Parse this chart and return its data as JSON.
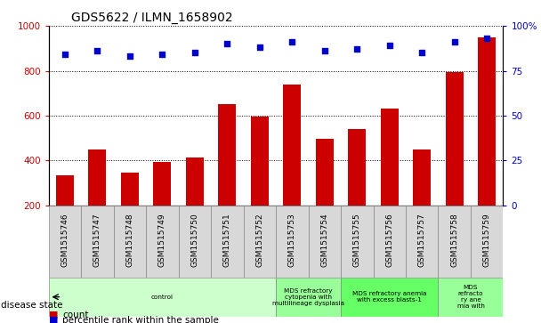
{
  "title": "GDS5622 / ILMN_1658902",
  "samples": [
    "GSM1515746",
    "GSM1515747",
    "GSM1515748",
    "GSM1515749",
    "GSM1515750",
    "GSM1515751",
    "GSM1515752",
    "GSM1515753",
    "GSM1515754",
    "GSM1515755",
    "GSM1515756",
    "GSM1515757",
    "GSM1515758",
    "GSM1515759"
  ],
  "counts": [
    335,
    450,
    347,
    395,
    415,
    650,
    595,
    737,
    498,
    540,
    630,
    448,
    795,
    950
  ],
  "percentiles": [
    84,
    86,
    83,
    84,
    85,
    90,
    88,
    91,
    86,
    87,
    89,
    85,
    91,
    93
  ],
  "ylim_left": [
    200,
    1000
  ],
  "ylim_right": [
    0,
    100
  ],
  "yticks_left": [
    200,
    400,
    600,
    800,
    1000
  ],
  "yticks_right": [
    0,
    25,
    50,
    75,
    100
  ],
  "bar_color": "#cc0000",
  "dot_color": "#0000cc",
  "plot_bg": "#ffffff",
  "disease_groups": [
    {
      "label": "control",
      "start": 0,
      "end": 7,
      "color": "#ccffcc"
    },
    {
      "label": "MDS refractory\ncytopenia with\nmultilineage dysplasia",
      "start": 7,
      "end": 9,
      "color": "#99ff99"
    },
    {
      "label": "MDS refractory anemia\nwith excess blasts-1",
      "start": 9,
      "end": 12,
      "color": "#66ff66"
    },
    {
      "label": "MDS\nrefracto\nry ane\nmia with",
      "start": 12,
      "end": 14,
      "color": "#99ff99"
    }
  ],
  "disease_label": "disease state",
  "legend_count": "count",
  "legend_percentile": "percentile rank within the sample",
  "background_color": "#ffffff",
  "tick_label_color_left": "#cc0000",
  "tick_label_color_right": "#0000cc",
  "tick_box_color": "#d8d8d8"
}
